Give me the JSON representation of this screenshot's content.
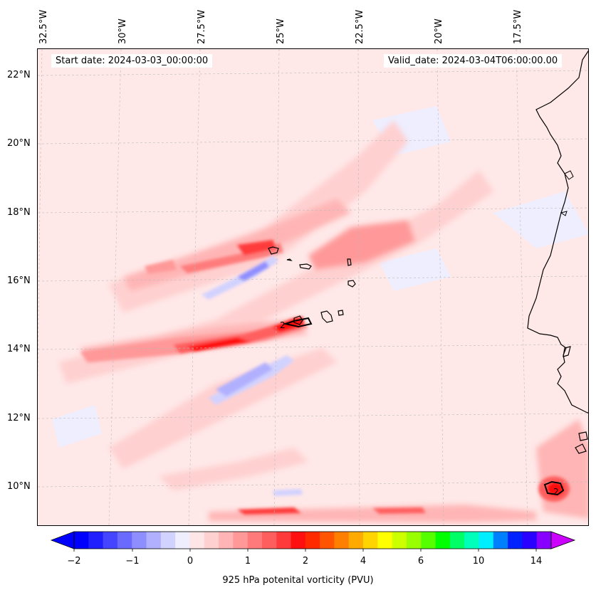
{
  "header": {
    "start_date": "Start date: 2024-03-03_00:00:00",
    "valid_date": "Valid_date: 2024-03-04T06:00:00.00"
  },
  "map": {
    "lon_labels": [
      "32.5°W",
      "30°W",
      "27.5°W",
      "25°W",
      "22.5°W",
      "20°W",
      "17.5°W"
    ],
    "lat_labels": [
      "22°N",
      "20°N",
      "18°N",
      "16°N",
      "14°N",
      "12°N",
      "10°N"
    ],
    "contour_labels": [
      "2",
      "2"
    ],
    "features": [
      "Cape Verde islands",
      "West African coastline"
    ]
  },
  "colorbar": {
    "title": "925 hPa potenital vorticity (PVU)",
    "ticks": [
      "−2",
      "−1",
      "0",
      "1",
      "2",
      "4",
      "6",
      "10",
      "14"
    ],
    "colors": [
      "#0000ff",
      "#2020ff",
      "#4545ff",
      "#6a6aff",
      "#8e8eff",
      "#b0b0ff",
      "#d2d2ff",
      "#eeeeff",
      "#ffe6e6",
      "#ffd0d0",
      "#ffb5b5",
      "#ff9999",
      "#ff7b7b",
      "#ff5e5e",
      "#ff3a3a",
      "#ff1010",
      "#ff2a00",
      "#ff5500",
      "#ff8000",
      "#ffaa00",
      "#ffd400",
      "#ffff00",
      "#ccff00",
      "#99ff00",
      "#55ff00",
      "#00ff00",
      "#00ff66",
      "#00ffbb",
      "#00eeff",
      "#0080ff",
      "#0022ff",
      "#2a00ff",
      "#8800ff"
    ],
    "extend_low": "#0000ff",
    "extend_high": "#cc00ff"
  }
}
